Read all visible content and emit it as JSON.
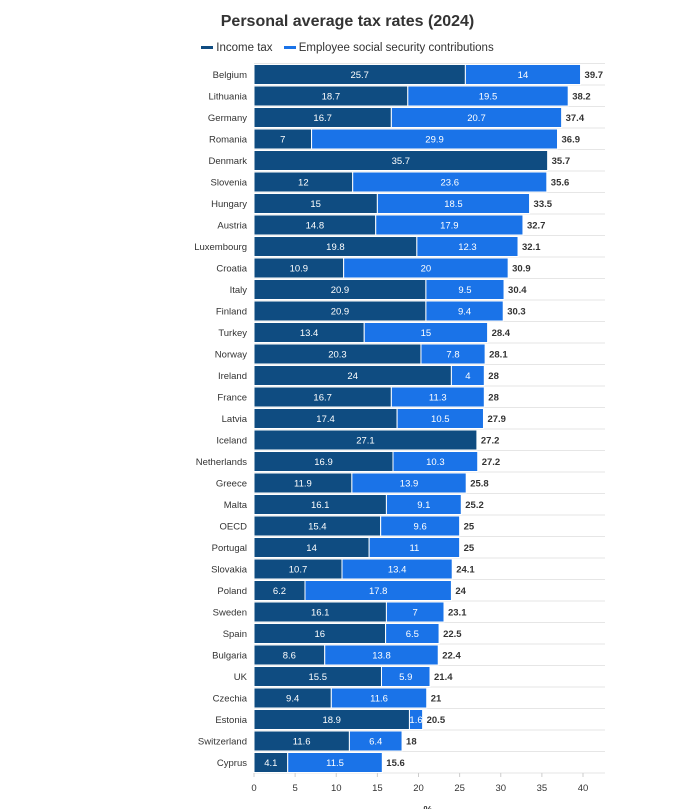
{
  "chart_data": {
    "type": "bar",
    "orientation": "horizontal",
    "stacked": true,
    "title": "Personal average tax rates (2024)",
    "xlabel": "%",
    "ylabel": "",
    "xlim": [
      0,
      40
    ],
    "xticks": [
      "0",
      "5",
      "10",
      "15",
      "20",
      "25",
      "30",
      "35",
      "40"
    ],
    "grid": true,
    "legend_position": "top",
    "categories": [
      "Belgium",
      "Lithuania",
      "Germany",
      "Romania",
      "Denmark",
      "Slovenia",
      "Hungary",
      "Austria",
      "Luxembourg",
      "Croatia",
      "Italy",
      "Finland",
      "Turkey",
      "Norway",
      "Ireland",
      "France",
      "Latvia",
      "Iceland",
      "Netherlands",
      "Greece",
      "Malta",
      "OECD",
      "Portugal",
      "Slovakia",
      "Poland",
      "Sweden",
      "Spain",
      "Bulgaria",
      "UK",
      "Czechia",
      "Estonia",
      "Switzerland",
      "Cyprus"
    ],
    "series": [
      {
        "name": "Income tax",
        "color": "#0f4c81",
        "values": [
          25.7,
          18.7,
          16.7,
          7,
          35.7,
          12,
          15,
          14.8,
          19.8,
          10.9,
          20.9,
          20.9,
          13.4,
          20.3,
          24,
          16.7,
          17.4,
          27.1,
          16.9,
          11.9,
          16.1,
          15.4,
          14,
          10.7,
          6.2,
          16.1,
          16,
          8.6,
          15.5,
          9.4,
          18.9,
          11.6,
          4.1
        ]
      },
      {
        "name": "Employee social security contributions",
        "color": "#1a73e8",
        "values": [
          14,
          19.5,
          20.7,
          29.9,
          null,
          23.6,
          18.5,
          17.9,
          12.3,
          20,
          9.5,
          9.4,
          15,
          7.8,
          4,
          11.3,
          10.5,
          null,
          10.3,
          13.9,
          9.1,
          9.6,
          11,
          13.4,
          17.8,
          7,
          6.5,
          13.8,
          5.9,
          11.6,
          1.6,
          6.4,
          11.5
        ]
      }
    ],
    "totals": [
      "39.7",
      "38.2",
      "37.4",
      "36.9",
      "35.7",
      "35.6",
      "33.5",
      "32.7",
      "32.1",
      "30.9",
      "30.4",
      "30.3",
      "28.4",
      "28.1",
      "28",
      "28",
      "27.9",
      "27.2",
      "27.2",
      "25.8",
      "25.2",
      "25",
      "25",
      "24.1",
      "24",
      "23.1",
      "22.5",
      "22.4",
      "21.4",
      "21",
      "20.5",
      "18",
      "15.6"
    ],
    "colors": {
      "income_tax": "#0f4c81",
      "social_security": "#1a73e8",
      "total_label": "#333333"
    }
  }
}
